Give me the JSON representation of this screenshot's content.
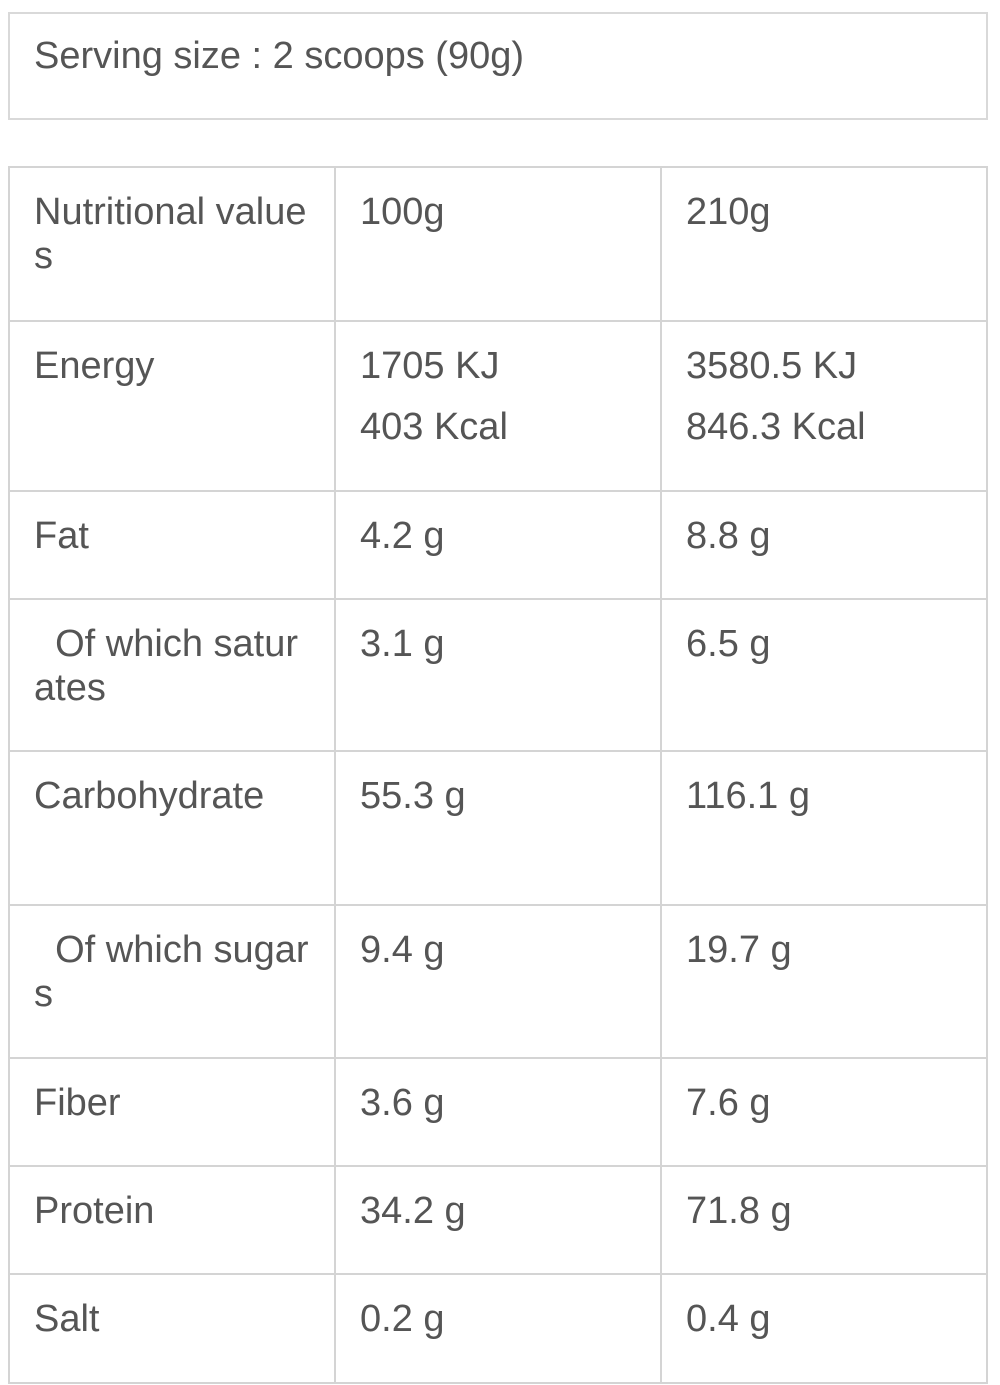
{
  "serving": "Serving size : 2 scoops (90g)",
  "table": {
    "header": [
      "Nutritional values",
      "100g",
      "210g"
    ],
    "rows": [
      [
        "Energy",
        [
          "1705 KJ",
          "403 Kcal"
        ],
        [
          "3580.5 KJ",
          "846.3 Kcal"
        ]
      ],
      [
        "Fat",
        "4.2 g",
        "8.8 g"
      ],
      [
        "  Of which saturates",
        "3.1 g",
        "6.5 g"
      ],
      [
        "Carbohydrate",
        "55.3 g",
        "116.1 g"
      ],
      [
        "  Of which sugars",
        "9.4 g",
        "19.7 g"
      ],
      [
        "Fiber",
        "3.6 g",
        "7.6 g"
      ],
      [
        "Protein",
        "34.2 g",
        "71.8 g"
      ],
      [
        "Salt",
        "0.2 g",
        "0.4 g"
      ]
    ]
  }
}
